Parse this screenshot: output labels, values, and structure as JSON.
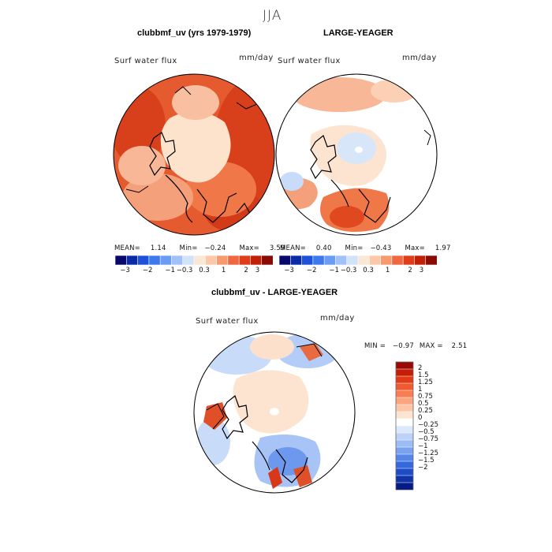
{
  "season": "JJA",
  "panels": [
    {
      "title": "clubbmf_uv (yrs 1979-1979)",
      "variable": "Surf water flux",
      "units": "mm/day",
      "stats": {
        "mean_label": "MEAN=",
        "mean": "1.14",
        "min_label": "Min=",
        "min": "−0.24",
        "max_label": "Max=",
        "max": "3.59"
      }
    },
    {
      "title": "LARGE-YEAGER",
      "variable": "Surf water flux",
      "units": "mm/day",
      "stats": {
        "mean_label": "MEAN=",
        "mean": "0.40",
        "min_label": "Min=",
        "min": "−0.43",
        "max_label": "Max=",
        "max": "1.97"
      }
    },
    {
      "title": "clubbmf_uv - LARGE-YEAGER",
      "variable": "Surf water flux",
      "units": "mm/day",
      "stats": {
        "min_label": "MIN =",
        "min": "−0.97",
        "max_label": "MAX =",
        "max": "2.51"
      }
    }
  ],
  "colorbar_top": {
    "colors": [
      "#08086b",
      "#0a2aa8",
      "#1e50d8",
      "#3c78ee",
      "#6a9cf5",
      "#a0c0f8",
      "#d2e2fb",
      "#f9e8d6",
      "#fcc8a8",
      "#f89a70",
      "#f06840",
      "#e03c18",
      "#c02008",
      "#8c0a04"
    ],
    "ticks": [
      "−3",
      "−2",
      "−1",
      "−0.3",
      "0.3",
      "1",
      "2",
      "3"
    ]
  },
  "colorbar_diff": {
    "colors": [
      "#9a0a04",
      "#c41e08",
      "#e03a16",
      "#f05a30",
      "#f67e52",
      "#fba47e",
      "#fdc6a6",
      "#fde4d2",
      "#ffffff",
      "#dce8fb",
      "#bcd2f8",
      "#9cbcf5",
      "#7aa2f0",
      "#5686ea",
      "#3468dc",
      "#1e4cc6",
      "#1034a8",
      "#061a88"
    ],
    "labels": [
      "2",
      "1.5",
      "1.25",
      "1",
      "0.75",
      "0.5",
      "0.25",
      "0",
      "−0.25",
      "−0.5",
      "−0.75",
      "−1",
      "−1.25",
      "−1.5",
      "−2"
    ]
  }
}
